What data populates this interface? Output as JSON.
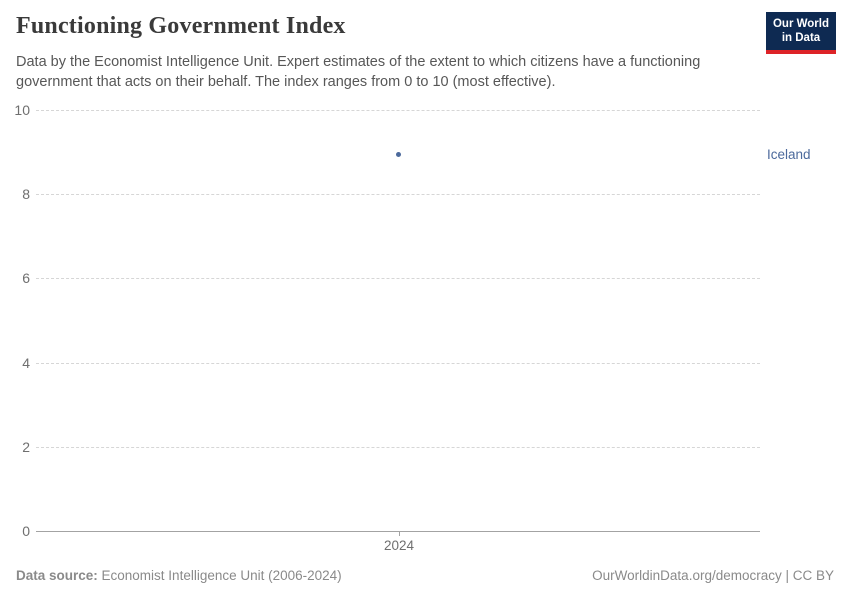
{
  "header": {
    "title": "Functioning Government Index",
    "subtitle": "Data by the Economist Intelligence Unit. Expert estimates of the extent to which citizens have a functioning government that acts on their behalf. The index ranges from 0 to 10 (most effective).",
    "logo_line1": "Our World",
    "logo_line2": "in Data"
  },
  "chart_data": {
    "type": "scatter",
    "title": "Functioning Government Index",
    "x": [
      2024
    ],
    "xticks": [
      "2024"
    ],
    "series": [
      {
        "name": "Iceland",
        "x": [
          2024
        ],
        "values": [
          8.93
        ],
        "color": "#4C6A9C"
      }
    ],
    "xlabel": "",
    "ylabel": "",
    "ylim": [
      0,
      10
    ],
    "yticks": [
      0,
      2,
      4,
      6,
      8,
      10
    ],
    "grid": "horizontal-dashed",
    "legend_position": "label-right-of-plot"
  },
  "footer": {
    "source_label": "Data source:",
    "source_value": " Economist Intelligence Unit (2006-2024)",
    "credit": "OurWorldinData.org/democracy | CC BY"
  },
  "colors": {
    "accent": "#4C6A9C",
    "logo_bg": "#0e2a52",
    "logo_stripe": "#dd2327",
    "gridline": "#d6d6d6",
    "axis": "#a3a3a3",
    "tick_text": "#6f6f6f",
    "footer_text": "#8a8a8a"
  }
}
